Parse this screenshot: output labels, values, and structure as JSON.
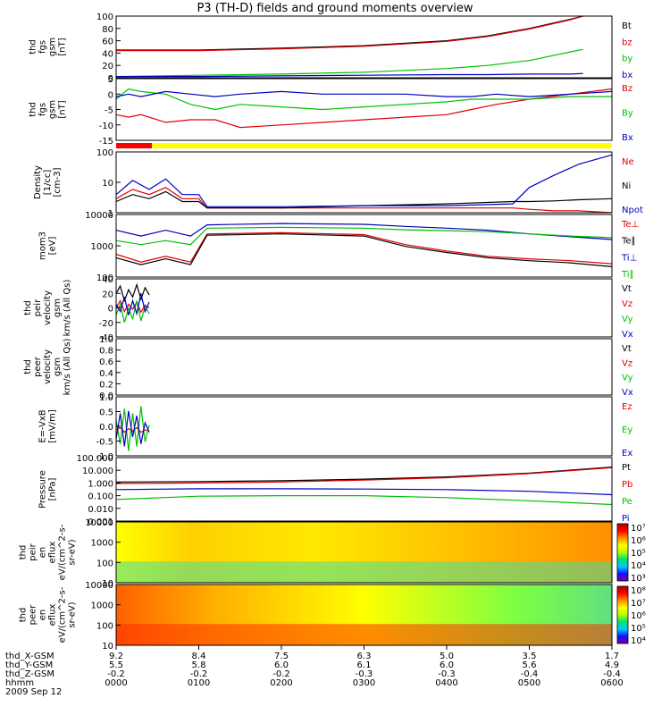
{
  "title": "P3 (TH-D) fields and ground moments overview",
  "date_label": "2009 Sep 12",
  "x_axis": {
    "row_labels": [
      "thd_X-GSM",
      "thd_Y-GSM",
      "thd_Z-GSM",
      "hhmm"
    ],
    "ticks": [
      {
        "values": [
          "9.2",
          "5.5",
          "-0.2",
          "0000"
        ]
      },
      {
        "values": [
          "8.4",
          "5.8",
          "-0.2",
          "0100"
        ]
      },
      {
        "values": [
          "7.5",
          "6.0",
          "-0.2",
          "0200"
        ]
      },
      {
        "values": [
          "6.3",
          "6.1",
          "-0.3",
          "0300"
        ]
      },
      {
        "values": [
          "5.0",
          "6.0",
          "-0.3",
          "0400"
        ]
      },
      {
        "values": [
          "3.5",
          "5.6",
          "-0.4",
          "0500"
        ]
      },
      {
        "values": [
          "1.7",
          "4.9",
          "-0.4",
          "0600"
        ]
      }
    ]
  },
  "colorbar_gradient": [
    "#7a00a0",
    "#1010ff",
    "#00c8ff",
    "#00e070",
    "#b0ff00",
    "#ffff00",
    "#ff9000",
    "#ff0000",
    "#b00000"
  ],
  "chart_data": [
    {
      "type": "line",
      "ylabel": [
        "thd",
        "fgs",
        "gsm",
        "[nT]"
      ],
      "ylim": [
        0,
        100
      ],
      "ticks": [
        "100",
        "80",
        "60",
        "40",
        "20",
        "0"
      ],
      "legend": [
        {
          "name": "Bt",
          "color": "#000000"
        },
        {
          "name": "bz",
          "color": "#e00000"
        },
        {
          "name": "by",
          "color": "#00c000"
        },
        {
          "name": "bx",
          "color": "#0000c0"
        }
      ],
      "x": [
        0,
        1,
        2,
        3,
        4,
        4.5,
        5,
        5.5,
        5.65
      ],
      "series": [
        {
          "name": "Bt",
          "color": "#000000",
          "values": [
            45,
            45,
            48,
            52,
            60,
            68,
            80,
            95,
            102
          ]
        },
        {
          "name": "bz",
          "color": "#e00000",
          "values": [
            44,
            44,
            47,
            51,
            59,
            67,
            79,
            94,
            101
          ]
        },
        {
          "name": "by",
          "color": "#00c000",
          "values": [
            2,
            4,
            6,
            9,
            15,
            20,
            28,
            42,
            46
          ]
        },
        {
          "name": "bx",
          "color": "#0000c0",
          "values": [
            2,
            2,
            3,
            4,
            5,
            5,
            6,
            6,
            7
          ]
        }
      ]
    },
    {
      "type": "line",
      "ylabel": [
        "thd",
        "fgs",
        "gsm",
        "[nT]"
      ],
      "ylim": [
        -18,
        6
      ],
      "ticks": [
        "5",
        "0",
        "-5",
        "-10",
        "-15"
      ],
      "legend": [
        {
          "name": "Bz",
          "color": "#e00000"
        },
        {
          "name": "By",
          "color": "#00c000"
        },
        {
          "name": "Bx",
          "color": "#0000c0"
        }
      ],
      "x": [
        0,
        0.15,
        0.3,
        0.6,
        0.9,
        1.2,
        1.5,
        2,
        2.5,
        3,
        3.5,
        4,
        4.3,
        4.6,
        5,
        5.5,
        6
      ],
      "series": [
        {
          "name": "Bz",
          "color": "#e00000",
          "values": [
            -8,
            -9,
            -8,
            -11,
            -10,
            -10,
            -13,
            -12,
            -11,
            -10,
            -9,
            -8,
            -6,
            -4,
            -2,
            0,
            2
          ]
        },
        {
          "name": "By",
          "color": "#00c000",
          "values": [
            -2,
            2,
            1,
            0,
            -4,
            -6,
            -4,
            -5,
            -6,
            -5,
            -4,
            -3,
            -2,
            -2,
            -2,
            -1,
            -1
          ]
        },
        {
          "name": "Bx",
          "color": "#0000c0",
          "values": [
            -1,
            0,
            -1,
            1,
            0,
            -1,
            0,
            1,
            0,
            0,
            0,
            -1,
            -1,
            0,
            -1,
            0,
            1
          ]
        }
      ]
    },
    {
      "type": "line",
      "ylabel": [
        "Density",
        "[1/cc]",
        "[cm-3]"
      ],
      "yscale": "log",
      "ylim": [
        0.5,
        200
      ],
      "ticks": [
        "100",
        "10",
        "1"
      ],
      "legend": [
        {
          "name": "Ne",
          "color": "#e00000"
        },
        {
          "name": "Ni",
          "color": "#000000"
        },
        {
          "name": "Npot",
          "color": "#0000c0"
        }
      ],
      "x": [
        0,
        0.2,
        0.4,
        0.6,
        0.8,
        1,
        1.1,
        2,
        3,
        4,
        4.8,
        5,
        5.3,
        5.6,
        6
      ],
      "series": [
        {
          "name": "Ne",
          "color": "#e00000",
          "values": [
            2,
            5,
            3,
            6,
            2,
            2,
            0.8,
            0.8,
            0.8,
            0.8,
            0.8,
            0.7,
            0.6,
            0.6,
            0.5
          ]
        },
        {
          "name": "Ni",
          "color": "#000000",
          "values": [
            1.5,
            3,
            2,
            4,
            1.5,
            1.5,
            0.8,
            0.8,
            1,
            1.2,
            1.5,
            1.5,
            1.6,
            1.8,
            2
          ]
        },
        {
          "name": "Npot",
          "color": "#0000c0",
          "values": [
            3,
            12,
            5,
            14,
            3,
            3,
            0.9,
            0.9,
            1,
            1,
            1.2,
            6,
            20,
            60,
            150
          ]
        }
      ]
    },
    {
      "type": "line",
      "ylabel": [
        "mom3",
        "[eV]"
      ],
      "yscale": "log",
      "ylim": [
        40,
        10000
      ],
      "ticks": [
        "10000",
        "1000",
        "100"
      ],
      "legend": [
        {
          "name": "Te⊥",
          "color": "#e00000"
        },
        {
          "name": "Te∥",
          "color": "#000000"
        },
        {
          "name": "Ti⊥",
          "color": "#0000c0"
        },
        {
          "name": "Ti∥",
          "color": "#00c000"
        }
      ],
      "x": [
        0,
        0.3,
        0.6,
        0.9,
        1.1,
        2,
        3,
        3.5,
        4,
        4.5,
        5,
        5.5,
        6
      ],
      "series": [
        {
          "name": "Te⊥",
          "color": "#e00000",
          "values": [
            300,
            150,
            250,
            150,
            1800,
            2000,
            1700,
            700,
            400,
            250,
            200,
            170,
            130
          ]
        },
        {
          "name": "Te∥",
          "color": "#000000",
          "values": [
            220,
            120,
            200,
            120,
            1600,
            1800,
            1500,
            600,
            350,
            220,
            170,
            140,
            100
          ]
        },
        {
          "name": "Ti⊥",
          "color": "#0000c0",
          "values": [
            2500,
            1500,
            2500,
            1500,
            4000,
            4500,
            4200,
            3500,
            3000,
            2500,
            1800,
            1400,
            1100
          ]
        },
        {
          "name": "Ti∥",
          "color": "#00c000",
          "values": [
            1000,
            700,
            1000,
            700,
            3000,
            3200,
            3000,
            2600,
            2400,
            2200,
            1800,
            1500,
            1300
          ]
        }
      ]
    },
    {
      "type": "line",
      "ylabel": [
        "thd",
        "peir",
        "velocity",
        "gsm",
        "km/s (All Qs)"
      ],
      "ylim": [
        -40,
        40
      ],
      "ticks": [
        "40",
        "20",
        "0",
        "-20",
        "-40"
      ],
      "legend": [
        {
          "name": "Vt",
          "color": "#000000"
        },
        {
          "name": "Vz",
          "color": "#e00000"
        },
        {
          "name": "Vy",
          "color": "#00c000"
        },
        {
          "name": "Vx",
          "color": "#0000c0"
        }
      ],
      "x": [
        0,
        0.05,
        0.1,
        0.15,
        0.2,
        0.25,
        0.3,
        0.35,
        0.4
      ],
      "series": [
        {
          "name": "Vt",
          "color": "#000000",
          "values": [
            20,
            30,
            10,
            25,
            15,
            32,
            12,
            28,
            18
          ]
        },
        {
          "name": "Vz",
          "color": "#e00000",
          "values": [
            0,
            10,
            -5,
            5,
            -2,
            8,
            -6,
            4,
            0
          ]
        },
        {
          "name": "Vy",
          "color": "#00c000",
          "values": [
            -10,
            5,
            -20,
            0,
            -15,
            10,
            -18,
            2,
            -8
          ]
        },
        {
          "name": "Vx",
          "color": "#0000c0",
          "values": [
            5,
            -5,
            15,
            -10,
            10,
            -8,
            20,
            -5,
            8
          ]
        }
      ]
    },
    {
      "type": "line",
      "ylabel": [
        "thd",
        "peer",
        "velocity",
        "gsm",
        "km/s (All Qs)"
      ],
      "ylim": [
        0,
        1
      ],
      "ticks": [
        "1.0",
        "0.8",
        "0.6",
        "0.4",
        "0.2",
        "0.0"
      ],
      "legend": [
        {
          "name": "Vt",
          "color": "#000000"
        },
        {
          "name": "Vz",
          "color": "#e00000"
        },
        {
          "name": "Vy",
          "color": "#00c000"
        },
        {
          "name": "Vx",
          "color": "#0000c0"
        }
      ],
      "x": [],
      "series": []
    },
    {
      "type": "line",
      "ylabel": [
        "E=-VxB",
        "[mV/m]"
      ],
      "ylim": [
        -1,
        1.5
      ],
      "ticks": [
        "1.0",
        "0.5",
        "0.0",
        "-0.5",
        "-1.0"
      ],
      "legend": [
        {
          "name": "Ez",
          "color": "#e00000"
        },
        {
          "name": "Ey",
          "color": "#00c000"
        },
        {
          "name": "Ex",
          "color": "#0000c0"
        }
      ],
      "x": [
        0,
        0.05,
        0.1,
        0.15,
        0.2,
        0.25,
        0.3,
        0.35,
        0.4
      ],
      "series": [
        {
          "name": "Ez",
          "color": "#e00000",
          "values": [
            0.1,
            0.2,
            0,
            0.15,
            0.05,
            0.2,
            0,
            0.1,
            0.05
          ]
        },
        {
          "name": "Ey",
          "color": "#00c000",
          "values": [
            0.5,
            -0.5,
            1,
            -0.8,
            0.8,
            -0.6,
            1.1,
            -0.4,
            0.3
          ]
        },
        {
          "name": "Ex",
          "color": "#0000c0",
          "values": [
            -0.3,
            0.8,
            -0.6,
            0.9,
            -0.2,
            0.7,
            -0.5,
            0.4,
            0
          ]
        }
      ]
    },
    {
      "type": "line",
      "ylabel": [
        "Pressure",
        "[nPa]"
      ],
      "yscale": "log",
      "ylim": [
        0.001,
        100
      ],
      "ticks": [
        "100.000",
        "10.000",
        "1.000",
        "0.100",
        "0.010",
        "0.001"
      ],
      "legend": [
        {
          "name": "Pt",
          "color": "#000000"
        },
        {
          "name": "Pb",
          "color": "#e00000"
        },
        {
          "name": "Pe",
          "color": "#00c000"
        },
        {
          "name": "Pi",
          "color": "#0000c0"
        }
      ],
      "x": [
        0,
        1,
        2,
        3,
        4,
        5,
        6
      ],
      "series": [
        {
          "name": "Pt",
          "color": "#000000",
          "values": [
            1.2,
            1.3,
            1.5,
            2,
            3,
            6,
            18
          ]
        },
        {
          "name": "Pb",
          "color": "#e00000",
          "values": [
            0.9,
            1,
            1.2,
            1.7,
            2.6,
            5.5,
            16
          ]
        },
        {
          "name": "Pe",
          "color": "#00c000",
          "values": [
            0.05,
            0.09,
            0.1,
            0.1,
            0.07,
            0.04,
            0.02
          ]
        },
        {
          "name": "Pi",
          "color": "#0000c0",
          "values": [
            0.3,
            0.35,
            0.35,
            0.33,
            0.3,
            0.22,
            0.12
          ]
        }
      ]
    },
    {
      "type": "heatmap",
      "ylabel": [
        "thd",
        "peir",
        "en",
        "eflux",
        "eV/(cm^2-s-",
        "sr-eV)"
      ],
      "yscale": "log",
      "ylim": [
        5,
        20000
      ],
      "ticks": [
        "10000",
        "1000",
        "100",
        "10"
      ],
      "colorbar": {
        "scale": "log",
        "ticks": [
          "10⁷",
          "10⁶",
          "10⁵",
          "10⁴",
          "10³"
        ]
      }
    },
    {
      "type": "heatmap",
      "ylabel": [
        "thd",
        "peer",
        "en",
        "eflux",
        "eV/(cm^2-s-",
        "sr-eV)"
      ],
      "yscale": "log",
      "ylim": [
        5,
        20000
      ],
      "ticks": [
        "10000",
        "1000",
        "100",
        "10"
      ],
      "colorbar": {
        "scale": "log",
        "ticks": [
          "10⁸",
          "10⁷",
          "10⁶",
          "10⁵",
          "10⁴"
        ]
      }
    }
  ]
}
